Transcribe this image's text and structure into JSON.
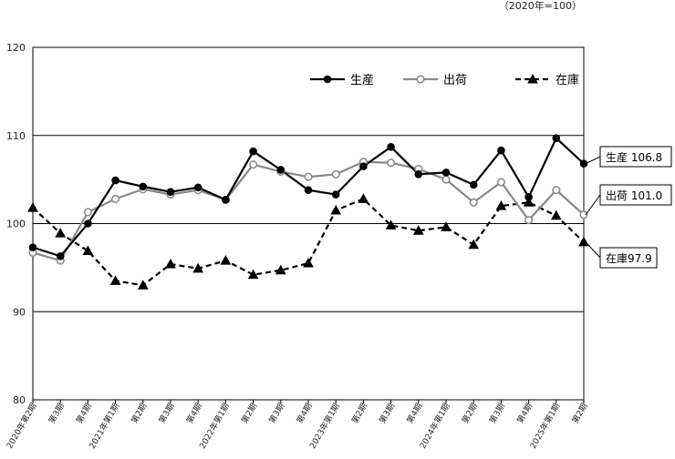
{
  "chart_data": {
    "type": "line",
    "unit_note": "（2020年=100）",
    "ylim": [
      80,
      120
    ],
    "yticks": [
      80,
      90,
      100,
      110,
      120
    ],
    "grid": "horizontal",
    "legend_position": "top-right",
    "categories": [
      "2020年第2期",
      "第3期",
      "第4期",
      "2021年第1期",
      "第2期",
      "第3期",
      "第4期",
      "2022年第1期",
      "第2期",
      "第3期",
      "第4期",
      "2023年第1期",
      "第2期",
      "第3期",
      "第4期",
      "2024年第1期",
      "第2期",
      "第3期",
      "第4期",
      "2025年第1期",
      "第2期"
    ],
    "series": [
      {
        "name": "生産",
        "color": "#000000",
        "marker": "circle-filled",
        "line": "solid",
        "values": [
          97.3,
          96.3,
          100.0,
          104.9,
          104.2,
          103.6,
          104.1,
          102.7,
          108.2,
          106.1,
          103.8,
          103.3,
          106.5,
          108.7,
          105.6,
          105.8,
          104.4,
          108.3,
          103.0,
          109.7,
          106.8
        ],
        "end_label": "生産 106.8"
      },
      {
        "name": "出荷",
        "color": "#888888",
        "marker": "circle-open",
        "line": "solid",
        "values": [
          96.7,
          95.8,
          101.3,
          102.8,
          103.9,
          103.3,
          103.8,
          102.7,
          106.7,
          105.9,
          105.3,
          105.6,
          107.0,
          106.9,
          106.2,
          105.0,
          102.4,
          104.7,
          100.4,
          103.8,
          101.0
        ],
        "end_label": "出荷 101.0"
      },
      {
        "name": "在庫",
        "color": "#000000",
        "marker": "triangle-filled",
        "line": "dashed",
        "values": [
          101.8,
          98.9,
          96.9,
          93.5,
          93.0,
          95.4,
          94.9,
          95.8,
          94.2,
          94.7,
          95.5,
          101.5,
          102.8,
          99.8,
          99.2,
          99.6,
          97.6,
          102.0,
          102.4,
          100.9,
          97.9
        ],
        "end_label": "在庫97.9"
      }
    ]
  }
}
